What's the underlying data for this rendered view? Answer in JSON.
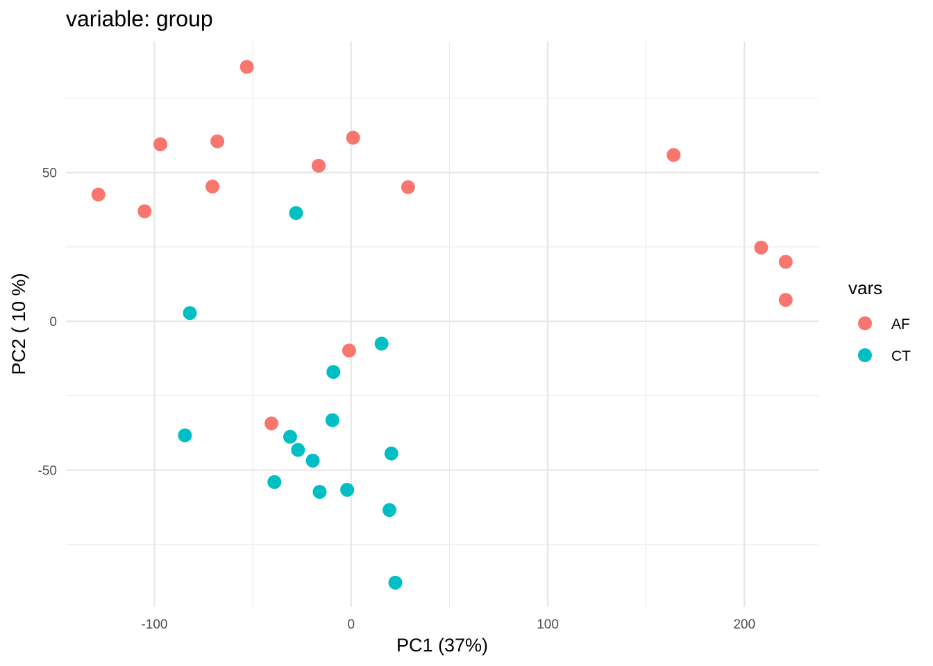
{
  "chart_data": {
    "type": "scatter",
    "title": "variable: group",
    "xlabel": "PC1 (37%)",
    "ylabel": "PC2 ( 10 %)",
    "xlim": [
      -145,
      238
    ],
    "ylim": [
      -96,
      94
    ],
    "x_major_ticks": [
      -100,
      0,
      100,
      200
    ],
    "x_tick_labels": [
      "-100",
      "0",
      "100",
      "200"
    ],
    "x_minor_ticks": [
      -50,
      50,
      150
    ],
    "y_major_ticks": [
      -50,
      0,
      50
    ],
    "y_tick_labels": [
      "-50",
      "0",
      "50"
    ],
    "y_minor_ticks": [
      -75,
      -25,
      25,
      75
    ],
    "grid": true,
    "legend": {
      "title": "vars",
      "position": "right"
    },
    "series": [
      {
        "name": "AF",
        "color": "#F8766D",
        "points": [
          [
            -53,
            85.5
          ],
          [
            -97,
            59.5
          ],
          [
            -68,
            60.5
          ],
          [
            1,
            61.7
          ],
          [
            -16.5,
            52.3
          ],
          [
            -70.5,
            45.3
          ],
          [
            -128.5,
            42.6
          ],
          [
            -105,
            37
          ],
          [
            29,
            45.1
          ],
          [
            164,
            55.9
          ],
          [
            208.5,
            24.8
          ],
          [
            221,
            20
          ],
          [
            221,
            7.2
          ],
          [
            -1,
            -9.8
          ],
          [
            -40.5,
            -34.3
          ]
        ]
      },
      {
        "name": "CT",
        "color": "#00BFC4",
        "points": [
          [
            -28,
            36.4
          ],
          [
            -82,
            2.8
          ],
          [
            15.5,
            -7.5
          ],
          [
            -9,
            -17
          ],
          [
            -9.5,
            -33.2
          ],
          [
            -84.5,
            -38.3
          ],
          [
            -31,
            -38.8
          ],
          [
            -27,
            -43.2
          ],
          [
            -19.5,
            -46.8
          ],
          [
            20.5,
            -44.4
          ],
          [
            -39,
            -54
          ],
          [
            -16,
            -57.3
          ],
          [
            -2,
            -56.6
          ],
          [
            19.5,
            -63.4
          ],
          [
            22.5,
            -87.8
          ]
        ]
      }
    ]
  }
}
